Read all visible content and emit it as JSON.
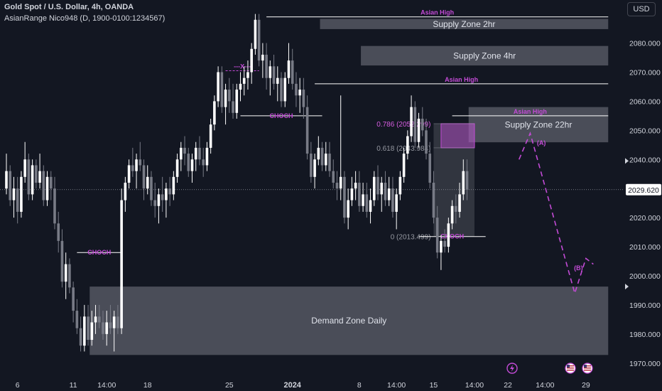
{
  "header": {
    "title": "Gold Spot / U.S. Dollar, 4h, OANDA",
    "indicator": "AsianRange Nico948 (D, 1900-0100:1234567)"
  },
  "currency_button": "USD",
  "colors": {
    "background": "#131722",
    "up_candle": "#ffffff",
    "down_candle": "#787b86",
    "zone_fill": "#5d606b",
    "accent": "#c34bd6",
    "grid_text": "#d1d4dc"
  },
  "chart_data": {
    "type": "candlestick",
    "y_axis": {
      "ticks": [
        1970,
        1980,
        1990,
        2000,
        2010,
        2020,
        2030,
        2040,
        2050,
        2060,
        2070,
        2080
      ],
      "tick_labels": [
        "1970.000",
        "1980.000",
        "1990.000",
        "2000.000",
        "2010.000",
        "2020.000",
        "2030.000",
        "2040.000",
        "2050.000",
        "2060.000",
        "2070.000",
        "2080.000"
      ],
      "range": [
        1965.3,
        2094.8
      ],
      "current_price": 2029.62,
      "current_price_label": "2029.620"
    },
    "x_axis": {
      "labels": [
        "6",
        "11",
        "14:00",
        "18",
        "25",
        "2024",
        "8",
        "14:00",
        "15",
        "14:00",
        "22",
        "14:00",
        "29"
      ],
      "label_index": [
        3,
        18,
        27,
        38,
        60,
        77,
        95,
        105,
        115,
        126,
        135,
        145,
        156
      ]
    },
    "candles": [
      [
        2030,
        2042,
        2028,
        2036
      ],
      [
        2036,
        2038,
        2024,
        2026
      ],
      [
        2026,
        2034,
        2020,
        2030
      ],
      [
        2030,
        2034,
        2018,
        2022
      ],
      [
        2022,
        2036,
        2020,
        2034
      ],
      [
        2034,
        2046,
        2032,
        2040
      ],
      [
        2040,
        2042,
        2026,
        2028
      ],
      [
        2028,
        2040,
        2026,
        2038
      ],
      [
        2038,
        2040,
        2030,
        2032
      ],
      [
        2032,
        2042,
        2030,
        2036
      ],
      [
        2036,
        2038,
        2024,
        2026
      ],
      [
        2026,
        2036,
        2024,
        2034
      ],
      [
        2034,
        2036,
        2026,
        2030
      ],
      [
        2030,
        2034,
        2016,
        2018
      ],
      [
        2018,
        2022,
        2008,
        2012
      ],
      [
        2012,
        2016,
        1996,
        1998
      ],
      [
        1998,
        2008,
        1992,
        2004
      ],
      [
        2004,
        2006,
        1994,
        1996
      ],
      [
        1996,
        1998,
        1984,
        1988
      ],
      [
        1988,
        1992,
        1980,
        1982
      ],
      [
        1982,
        1986,
        1974,
        1976
      ],
      [
        1976,
        1990,
        1974,
        1986
      ],
      [
        1986,
        1990,
        1976,
        1978
      ],
      [
        1978,
        1988,
        1976,
        1984
      ],
      [
        1984,
        1990,
        1980,
        1986
      ],
      [
        1986,
        1990,
        1982,
        1984
      ],
      [
        1984,
        1988,
        1978,
        1980
      ],
      [
        1980,
        1988,
        1976,
        1984
      ],
      [
        1984,
        1990,
        1980,
        1982
      ],
      [
        1982,
        1988,
        1974,
        1986
      ],
      [
        1986,
        1990,
        1980,
        1982
      ],
      [
        1982,
        2030,
        1980,
        2026
      ],
      [
        2026,
        2034,
        2022,
        2032
      ],
      [
        2032,
        2040,
        2030,
        2038
      ],
      [
        2038,
        2044,
        2034,
        2036
      ],
      [
        2036,
        2042,
        2030,
        2040
      ],
      [
        2040,
        2046,
        2036,
        2038
      ],
      [
        2038,
        2040,
        2026,
        2030
      ],
      [
        2030,
        2038,
        2028,
        2034
      ],
      [
        2034,
        2036,
        2024,
        2026
      ],
      [
        2026,
        2032,
        2020,
        2024
      ],
      [
        2024,
        2030,
        2018,
        2028
      ],
      [
        2028,
        2034,
        2022,
        2026
      ],
      [
        2026,
        2032,
        2020,
        2030
      ],
      [
        2030,
        2034,
        2024,
        2028
      ],
      [
        2028,
        2036,
        2026,
        2034
      ],
      [
        2034,
        2042,
        2032,
        2040
      ],
      [
        2040,
        2046,
        2036,
        2044
      ],
      [
        2044,
        2048,
        2038,
        2042
      ],
      [
        2042,
        2044,
        2034,
        2036
      ],
      [
        2036,
        2042,
        2032,
        2040
      ],
      [
        2040,
        2046,
        2036,
        2044
      ],
      [
        2044,
        2048,
        2038,
        2040
      ],
      [
        2040,
        2044,
        2034,
        2038
      ],
      [
        2038,
        2046,
        2036,
        2044
      ],
      [
        2044,
        2054,
        2042,
        2052
      ],
      [
        2052,
        2062,
        2050,
        2060
      ],
      [
        2060,
        2072,
        2058,
        2070
      ],
      [
        2070,
        2072,
        2056,
        2058
      ],
      [
        2058,
        2066,
        2052,
        2064
      ],
      [
        2064,
        2068,
        2056,
        2060
      ],
      [
        2060,
        2066,
        2054,
        2056
      ],
      [
        2056,
        2066,
        2054,
        2064
      ],
      [
        2064,
        2070,
        2060,
        2066
      ],
      [
        2066,
        2072,
        2062,
        2068
      ],
      [
        2068,
        2074,
        2064,
        2070
      ],
      [
        2070,
        2080,
        2066,
        2078
      ],
      [
        2078,
        2090,
        2076,
        2088
      ],
      [
        2088,
        2090,
        2072,
        2074
      ],
      [
        2074,
        2080,
        2068,
        2076
      ],
      [
        2076,
        2080,
        2064,
        2068
      ],
      [
        2068,
        2074,
        2062,
        2072
      ],
      [
        2072,
        2076,
        2064,
        2066
      ],
      [
        2066,
        2072,
        2060,
        2068
      ],
      [
        2068,
        2070,
        2058,
        2060
      ],
      [
        2060,
        2070,
        2058,
        2068
      ],
      [
        2068,
        2080,
        2066,
        2074
      ],
      [
        2074,
        2078,
        2064,
        2066
      ],
      [
        2066,
        2070,
        2058,
        2062
      ],
      [
        2062,
        2068,
        2056,
        2064
      ],
      [
        2064,
        2068,
        2054,
        2058
      ],
      [
        2058,
        2062,
        2040,
        2042
      ],
      [
        2042,
        2046,
        2032,
        2034
      ],
      [
        2034,
        2042,
        2030,
        2040
      ],
      [
        2040,
        2048,
        2038,
        2044
      ],
      [
        2044,
        2046,
        2036,
        2038
      ],
      [
        2038,
        2046,
        2036,
        2042
      ],
      [
        2042,
        2046,
        2034,
        2036
      ],
      [
        2036,
        2040,
        2030,
        2032
      ],
      [
        2032,
        2036,
        2026,
        2030
      ],
      [
        2030,
        2062,
        2026,
        2034
      ],
      [
        2034,
        2036,
        2018,
        2020
      ],
      [
        2020,
        2030,
        2016,
        2026
      ],
      [
        2026,
        2034,
        2024,
        2030
      ],
      [
        2030,
        2036,
        2026,
        2032
      ],
      [
        2032,
        2036,
        2022,
        2024
      ],
      [
        2024,
        2032,
        2022,
        2028
      ],
      [
        2028,
        2032,
        2020,
        2022
      ],
      [
        2022,
        2030,
        2018,
        2026
      ],
      [
        2026,
        2036,
        2024,
        2034
      ],
      [
        2034,
        2038,
        2026,
        2028
      ],
      [
        2028,
        2034,
        2022,
        2032
      ],
      [
        2032,
        2036,
        2024,
        2026
      ],
      [
        2026,
        2034,
        2024,
        2030
      ],
      [
        2030,
        2034,
        2020,
        2022
      ],
      [
        2022,
        2030,
        2016,
        2028
      ],
      [
        2028,
        2036,
        2026,
        2034
      ],
      [
        2034,
        2044,
        2032,
        2042
      ],
      [
        2042,
        2050,
        2040,
        2048
      ],
      [
        2048,
        2062,
        2046,
        2058
      ],
      [
        2058,
        2060,
        2044,
        2046
      ],
      [
        2046,
        2056,
        2044,
        2054
      ],
      [
        2054,
        2058,
        2048,
        2050
      ],
      [
        2050,
        2054,
        2040,
        2042
      ],
      [
        2042,
        2046,
        2030,
        2032
      ],
      [
        2032,
        2036,
        2018,
        2020
      ],
      [
        2020,
        2024,
        2006,
        2008
      ],
      [
        2008,
        2014,
        2002,
        2012
      ],
      [
        2012,
        2016,
        2008,
        2010
      ],
      [
        2010,
        2020,
        2008,
        2018
      ],
      [
        2018,
        2026,
        2016,
        2024
      ],
      [
        2024,
        2028,
        2018,
        2022
      ],
      [
        2022,
        2032,
        2020,
        2028
      ],
      [
        2028,
        2040,
        2026,
        2036
      ],
      [
        2036,
        2040,
        2026,
        2029.62
      ]
    ],
    "zones": [
      {
        "label": "Supply Zone 2hr",
        "x": [
          85,
          162
        ],
        "y": [
          2084.8,
          2088.3
        ]
      },
      {
        "label": "Supply Zone 4hr",
        "x": [
          96,
          162
        ],
        "y": [
          2072.3,
          2079.0
        ]
      },
      {
        "label": "Supply Zone 22hr",
        "x": [
          125,
          162
        ],
        "y": [
          2045.9,
          2058.0
        ]
      },
      {
        "label": "Demand Zone Daily",
        "x": [
          23,
          162
        ],
        "y": [
          1972.8,
          1996.3
        ]
      }
    ],
    "fib_box": {
      "x": [
        115,
        126
      ],
      "y": [
        2013.5,
        2052.3
      ]
    },
    "fib_zone": {
      "x": [
        117,
        126
      ],
      "y": [
        2044.0,
        2052.3
      ]
    },
    "fib_levels": [
      {
        "label": "0.786 (2052.299)",
        "value": 2052.299
      },
      {
        "label": "0.618 (2043.984)",
        "value": 2043.984
      },
      {
        "label": "0 (2013.499)",
        "value": 2013.499
      }
    ],
    "lines": [
      {
        "label": "Asian High",
        "x": [
          70,
          162
        ],
        "y": 2089.0
      },
      {
        "label": "Asian High",
        "x": [
          83,
          162
        ],
        "y": 2066.0
      },
      {
        "label": "Asian High",
        "x": [
          120,
          162
        ],
        "y": 2055.0
      },
      {
        "label": "CHOCH",
        "x": [
          19,
          31
        ],
        "y": 2008.0
      },
      {
        "label": "CHOCH",
        "x": [
          63,
          85
        ],
        "y": 2055.0
      },
      {
        "label": "CHOCH",
        "x": [
          111,
          129
        ],
        "y": 2013.5
      },
      {
        "label": "---X---",
        "x": [
          59,
          68
        ],
        "y": 2070.5
      }
    ],
    "projection": {
      "points": [
        [
          138,
          2040
        ],
        [
          141,
          2049
        ],
        [
          153,
          1994
        ],
        [
          156,
          2006
        ],
        [
          158,
          2004
        ]
      ],
      "labels": [
        {
          "label": "(A)",
          "point": [
            144,
            2045
          ]
        },
        {
          "label": "(B)",
          "point": [
            154,
            2002
          ]
        }
      ]
    }
  }
}
